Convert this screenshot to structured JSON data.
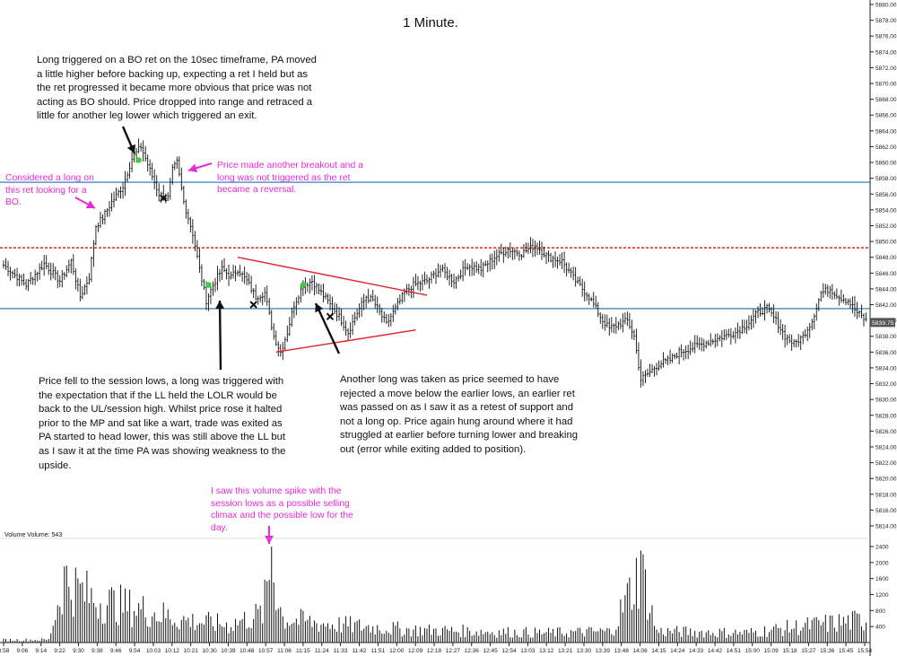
{
  "title": "1 Minute.",
  "volume_label": "Volume  Volume: 543",
  "annotations": {
    "bo_note": "Long triggered on a BO ret on the 10sec timeframe, PA moved a little higher before backing up, expecting a ret I held but as the ret progressed it became more obvious that price was not acting as BO should.  Price dropped into range and retraced a little for another leg lower which triggered an exit.",
    "consider_note": "Considered a long on this ret looking for a BO.",
    "breakout_note": "Price made another breakout and a long was not triggered as the ret became a reversal.",
    "lows_note": "Price fell to the session lows, a long was triggered with the expectation that if the LL held the LOLR would be back to the UL/session high.  Whilst price rose it halted prior to the MP and sat like a wart, trade was exited as PA started to head lower, this was still above the LL but as I saw it at the time PA was showing weakness to the upside.",
    "another_note": "Another long was taken as price seemed to have rejected a move below the earlier lows, an earlier ret was passed on as I saw it as a retest of support and not a long op.  Price again hung around where it had struggled at earlier before turning lower and breaking out (error while exiting added to position).",
    "volume_note": "I saw this volume spike with the session lows as a possible selling climax and the possible low for the day."
  },
  "colors": {
    "annotation_pink": "#e82ad7",
    "level_line": "#1f6fb8",
    "dashed_level": "#e0232a",
    "triangle": "#e0232a",
    "entry_marker": "#3ccf3c",
    "bars": "#111111",
    "current_price_box": "#555555"
  },
  "chart_data": {
    "type": "ohlc",
    "title": "1 Minute.",
    "price_axis": {
      "range": [
        5808,
        5882
      ],
      "ticks": [
        "5880.00",
        "5878.00",
        "5876.00",
        "5874.00",
        "5872.00",
        "5870.00",
        "5868.00",
        "5866.00",
        "5864.00",
        "5862.00",
        "5860.00",
        "5858.00",
        "5856.00",
        "5854.00",
        "5852.00",
        "5850.00",
        "5848.00",
        "5846.00",
        "5844.00",
        "5842.00",
        "5840.00",
        "5838.00",
        "5836.00",
        "5834.00",
        "5832.00",
        "5830.00",
        "5828.00",
        "5826.00",
        "5824.00",
        "5822.00",
        "5820.00",
        "5818.00",
        "5816.00",
        "5814.00"
      ],
      "current_price": "5839.75"
    },
    "volume_axis": {
      "range": [
        0,
        2800
      ],
      "ticks": [
        "2400",
        "2000",
        "1600",
        "1200",
        "800",
        "400"
      ]
    },
    "time_axis": {
      "ticks": [
        "8:58",
        "9:06",
        "9:14",
        "9:22",
        "9:30",
        "9:38",
        "9:46",
        "9:54",
        "10:03",
        "10:12",
        "10:21",
        "10:30",
        "10:39",
        "10:48",
        "10:57",
        "11:06",
        "11:15",
        "11:24",
        "11:33",
        "11:42",
        "11:51",
        "12:00",
        "12:09",
        "12:18",
        "12:27",
        "12:36",
        "12:45",
        "12:54",
        "13:03",
        "13:12",
        "13:21",
        "13:30",
        "13:39",
        "13:48",
        "14:06",
        "14:15",
        "14:24",
        "14:33",
        "14:42",
        "14:51",
        "15:00",
        "15:09",
        "15:18",
        "15:27",
        "15:36",
        "15:45",
        "15:54"
      ]
    },
    "levels": [
      {
        "price": 5857.5,
        "style": "solid",
        "color": "#1f6fb8"
      },
      {
        "price": 5849.2,
        "style": "dashed",
        "color": "#e0232a"
      },
      {
        "price": 5841.5,
        "style": "solid",
        "color": "#1f6fb8"
      }
    ],
    "close_anchors": [
      [
        0,
        5847.0
      ],
      [
        10,
        5844.5
      ],
      [
        18,
        5847.2
      ],
      [
        25,
        5845.0
      ],
      [
        30,
        5847.5
      ],
      [
        34,
        5843.0
      ],
      [
        38,
        5845.5
      ],
      [
        41,
        5852.0
      ],
      [
        44,
        5853.0
      ],
      [
        48,
        5855.0
      ],
      [
        53,
        5857.0
      ],
      [
        57,
        5860.5
      ],
      [
        61,
        5862.0
      ],
      [
        65,
        5859.0
      ],
      [
        69,
        5856.0
      ],
      [
        73,
        5855.5
      ],
      [
        75,
        5859.0
      ],
      [
        77,
        5860.0
      ],
      [
        80,
        5855.0
      ],
      [
        84,
        5851.0
      ],
      [
        87,
        5846.5
      ],
      [
        90,
        5842.5
      ],
      [
        93,
        5844.5
      ],
      [
        97,
        5846.5
      ],
      [
        101,
        5845.5
      ],
      [
        104,
        5846.5
      ],
      [
        108,
        5845.0
      ],
      [
        112,
        5843.0
      ],
      [
        116,
        5843.5
      ],
      [
        120,
        5838.0
      ],
      [
        123,
        5836.0
      ],
      [
        126,
        5838.5
      ],
      [
        129,
        5842.0
      ],
      [
        133,
        5844.5
      ],
      [
        137,
        5845.0
      ],
      [
        141,
        5843.5
      ],
      [
        145,
        5842.0
      ],
      [
        149,
        5840.5
      ],
      [
        153,
        5838.5
      ],
      [
        157,
        5841.0
      ],
      [
        161,
        5843.0
      ],
      [
        164,
        5842.5
      ],
      [
        167,
        5841.0
      ],
      [
        170,
        5839.5
      ],
      [
        174,
        5841.5
      ],
      [
        178,
        5843.5
      ],
      [
        182,
        5844.5
      ],
      [
        188,
        5845.0
      ],
      [
        194,
        5846.5
      ],
      [
        200,
        5845.0
      ],
      [
        206,
        5847.0
      ],
      [
        212,
        5846.5
      ],
      [
        218,
        5848.0
      ],
      [
        224,
        5849.0
      ],
      [
        230,
        5848.5
      ],
      [
        236,
        5849.5
      ],
      [
        242,
        5848.0
      ],
      [
        248,
        5847.5
      ],
      [
        254,
        5845.0
      ],
      [
        260,
        5843.0
      ],
      [
        266,
        5840.0
      ],
      [
        269,
        5839.0
      ],
      [
        273,
        5839.5
      ],
      [
        277,
        5840.0
      ],
      [
        280,
        5838.0
      ],
      [
        283,
        5832.5
      ],
      [
        287,
        5833.5
      ],
      [
        291,
        5834.5
      ],
      [
        296,
        5835.0
      ],
      [
        300,
        5836.0
      ],
      [
        305,
        5836.5
      ],
      [
        310,
        5837.0
      ],
      [
        315,
        5837.5
      ],
      [
        320,
        5838.0
      ],
      [
        325,
        5838.5
      ],
      [
        330,
        5839.5
      ],
      [
        335,
        5841.0
      ],
      [
        339,
        5841.5
      ],
      [
        343,
        5840.0
      ],
      [
        347,
        5838.0
      ],
      [
        351,
        5837.0
      ],
      [
        355,
        5838.0
      ],
      [
        359,
        5840.0
      ],
      [
        363,
        5843.5
      ],
      [
        367,
        5844.0
      ],
      [
        371,
        5843.0
      ],
      [
        375,
        5842.5
      ],
      [
        379,
        5841.0
      ],
      [
        383,
        5840.0
      ]
    ],
    "volume_anchors": [
      [
        0,
        80
      ],
      [
        20,
        90
      ],
      [
        27,
        2000
      ],
      [
        32,
        1700
      ],
      [
        40,
        1350
      ],
      [
        50,
        1200
      ],
      [
        60,
        1050
      ],
      [
        80,
        700
      ],
      [
        100,
        550
      ],
      [
        115,
        900
      ],
      [
        119,
        2400
      ],
      [
        124,
        750
      ],
      [
        140,
        600
      ],
      [
        180,
        400
      ],
      [
        240,
        300
      ],
      [
        270,
        350
      ],
      [
        283,
        2300
      ],
      [
        290,
        350
      ],
      [
        330,
        300
      ],
      [
        360,
        550
      ],
      [
        383,
        700
      ]
    ],
    "entries": [
      {
        "bar": 60,
        "price": 5860.3,
        "mark": "green-dot"
      },
      {
        "bar": 91,
        "price": 5844.5,
        "mark": "green-dot"
      },
      {
        "bar": 133,
        "price": 5844.5,
        "mark": "green-dot"
      },
      {
        "bar": 71,
        "price": 5855.5,
        "mark": "x"
      },
      {
        "bar": 111,
        "price": 5842.0,
        "mark": "x"
      },
      {
        "bar": 145,
        "price": 5840.5,
        "mark": "x"
      }
    ],
    "triangle": {
      "upper": [
        [
          104,
          5848.0
        ],
        [
          188,
          5843.2
        ]
      ],
      "lower": [
        [
          121,
          5836.0
        ],
        [
          183,
          5838.8
        ]
      ]
    }
  }
}
